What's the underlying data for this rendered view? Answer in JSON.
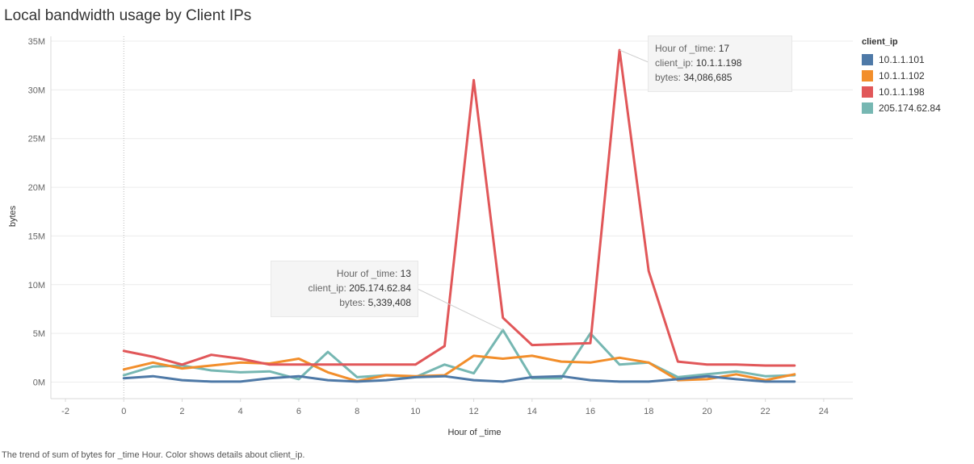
{
  "title": "Local bandwidth usage by Client IPs",
  "caption": "The trend of sum of bytes for _time Hour.  Color shows details about client_ip.",
  "legend": {
    "title": "client_ip",
    "items": [
      {
        "label": "10.1.1.101",
        "color": "#4e79a7"
      },
      {
        "label": "10.1.1.102",
        "color": "#f28e2b"
      },
      {
        "label": "10.1.1.198",
        "color": "#e15759"
      },
      {
        "label": "205.174.62.84",
        "color": "#76b7b2"
      }
    ]
  },
  "tooltips": [
    {
      "rows": [
        {
          "label": "Hour of _time:",
          "value": "17"
        },
        {
          "label": "client_ip:",
          "value": "10.1.1.198"
        },
        {
          "label": "bytes:",
          "value": "34,086,685"
        }
      ]
    },
    {
      "rows": [
        {
          "label": "Hour of _time:",
          "value": "13"
        },
        {
          "label": "client_ip:",
          "value": "205.174.62.84"
        },
        {
          "label": "bytes:",
          "value": "5,339,408"
        }
      ]
    }
  ],
  "chart_data": {
    "type": "line",
    "title": "Local bandwidth usage by Client IPs",
    "xlabel": "Hour of _time",
    "ylabel": "bytes",
    "xlim": [
      -2.5,
      25
    ],
    "ylim": [
      -1700000,
      35500000
    ],
    "x_ticks": [
      -2,
      0,
      2,
      4,
      6,
      8,
      10,
      12,
      14,
      16,
      18,
      20,
      22,
      24
    ],
    "y_ticks": [
      0,
      5000000,
      10000000,
      15000000,
      20000000,
      25000000,
      30000000,
      35000000
    ],
    "y_tick_labels": [
      "0M",
      "5M",
      "10M",
      "15M",
      "20M",
      "25M",
      "30M",
      "35M"
    ],
    "grid": true,
    "legend_position": "right",
    "x": [
      0,
      1,
      2,
      3,
      4,
      5,
      6,
      7,
      8,
      9,
      10,
      11,
      12,
      13,
      14,
      15,
      16,
      17,
      18,
      19,
      20,
      21,
      22,
      23
    ],
    "series": [
      {
        "name": "10.1.1.101",
        "color": "#4e79a7",
        "values": [
          400000,
          600000,
          200000,
          50000,
          50000,
          400000,
          600000,
          200000,
          50000,
          200000,
          500000,
          600000,
          200000,
          50000,
          500000,
          600000,
          200000,
          50000,
          50000,
          300000,
          600000,
          300000,
          50000,
          50000
        ]
      },
      {
        "name": "10.1.1.102",
        "color": "#f28e2b",
        "values": [
          1300000,
          2000000,
          1400000,
          1700000,
          2000000,
          1900000,
          2400000,
          1000000,
          100000,
          700000,
          600000,
          700000,
          2700000,
          2400000,
          2700000,
          2100000,
          2000000,
          2500000,
          2000000,
          200000,
          300000,
          800000,
          200000,
          800000
        ]
      },
      {
        "name": "10.1.1.198",
        "color": "#e15759",
        "values": [
          3200000,
          2600000,
          1800000,
          2800000,
          2400000,
          1800000,
          1800000,
          1800000,
          1800000,
          1800000,
          1800000,
          3700000,
          31000000,
          6600000,
          3800000,
          3900000,
          4000000,
          34086685,
          11400000,
          2100000,
          1800000,
          1800000,
          1700000,
          1700000
        ]
      },
      {
        "name": "205.174.62.84",
        "color": "#76b7b2",
        "values": [
          700000,
          1600000,
          1700000,
          1200000,
          1000000,
          1100000,
          300000,
          3100000,
          500000,
          700000,
          500000,
          1800000,
          900000,
          5339408,
          400000,
          400000,
          5000000,
          1800000,
          2000000,
          500000,
          800000,
          1100000,
          600000,
          700000
        ]
      }
    ]
  }
}
